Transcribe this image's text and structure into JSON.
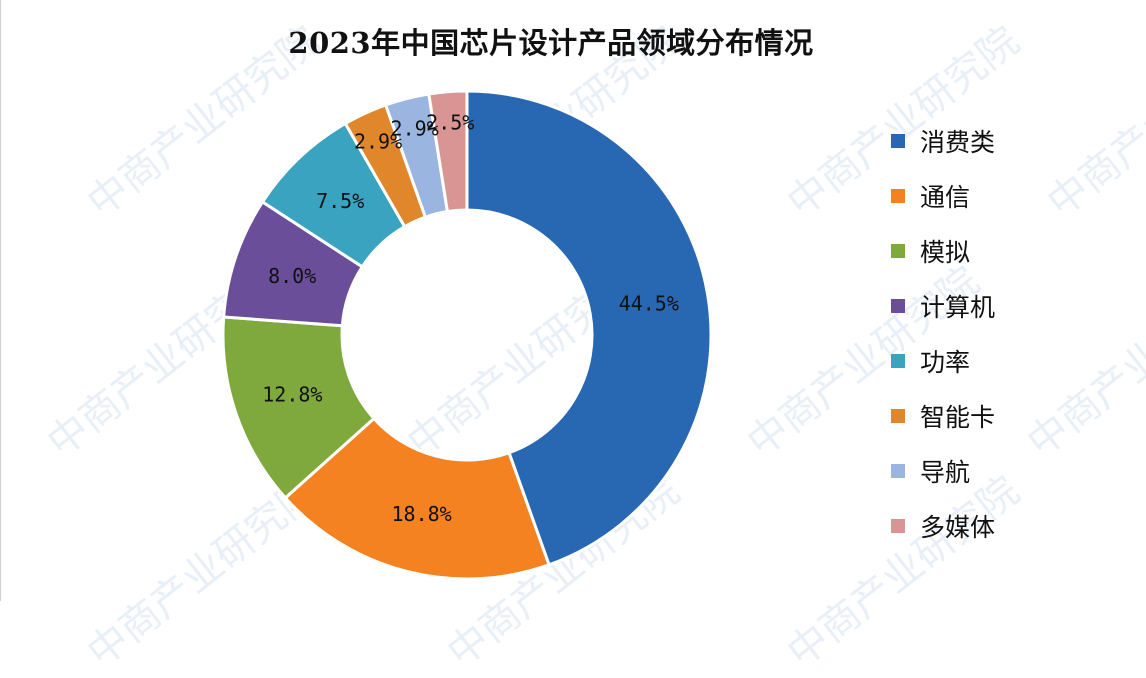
{
  "title": "2023年中国芯片设计产品领域分布情况",
  "watermark_text": "中商产业研究院",
  "chart_data": {
    "type": "pie",
    "variant": "donut",
    "title": "2023年中国芯片设计产品领域分布情况",
    "categories": [
      "消费类",
      "通信",
      "模拟",
      "计算机",
      "功率",
      "智能卡",
      "导航",
      "多媒体"
    ],
    "values": [
      44.5,
      18.8,
      12.8,
      8.0,
      7.5,
      2.9,
      2.9,
      2.5
    ],
    "labels": [
      "44.5%",
      "18.8%",
      "12.8%",
      "8.0%",
      "7.5%",
      "2.9%",
      "2.9%",
      "2.5%"
    ],
    "colors": [
      "#2867B2",
      "#F58220",
      "#7FA93C",
      "#6A4E9A",
      "#3AA3C0",
      "#E1872B",
      "#99B5E0",
      "#D99594"
    ],
    "start_angle": "12 o'clock",
    "direction": "clockwise",
    "legend_position": "right"
  }
}
